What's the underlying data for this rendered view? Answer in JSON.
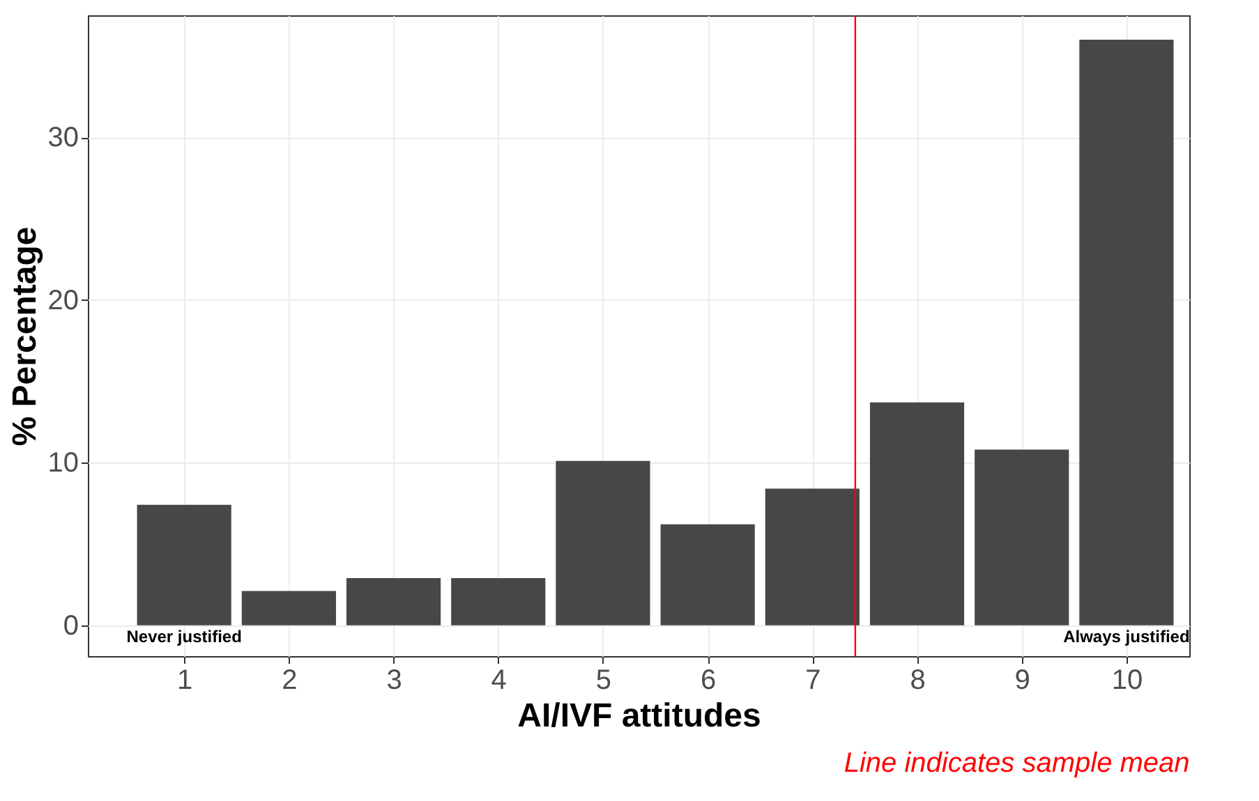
{
  "chart_data": {
    "type": "bar",
    "xlabel": "AI/IVF attitudes",
    "ylabel": "% Percentage",
    "x": [
      1,
      2,
      3,
      4,
      5,
      6,
      7,
      8,
      9,
      10
    ],
    "values": [
      7.4,
      2.1,
      2.9,
      2.9,
      10.1,
      6.2,
      8.4,
      13.7,
      10.8,
      36.0
    ],
    "color": "#474747",
    "xlim": [
      0.08,
      10.6
    ],
    "xticks": [
      1,
      2,
      3,
      4,
      5,
      6,
      7,
      8,
      9,
      10
    ],
    "ylim": [
      -1.9,
      37.5
    ],
    "yticks": [
      0,
      10,
      20,
      30
    ],
    "grid": true,
    "ref_lines": [
      {
        "axis": "x",
        "value": 7.41,
        "color": "#ff0000"
      }
    ],
    "annotations": [
      {
        "text": "Never justified",
        "x": 1,
        "y": 0
      },
      {
        "text": "Always justified",
        "x": 10,
        "y": 0
      },
      "Line indicates sample mean"
    ]
  }
}
